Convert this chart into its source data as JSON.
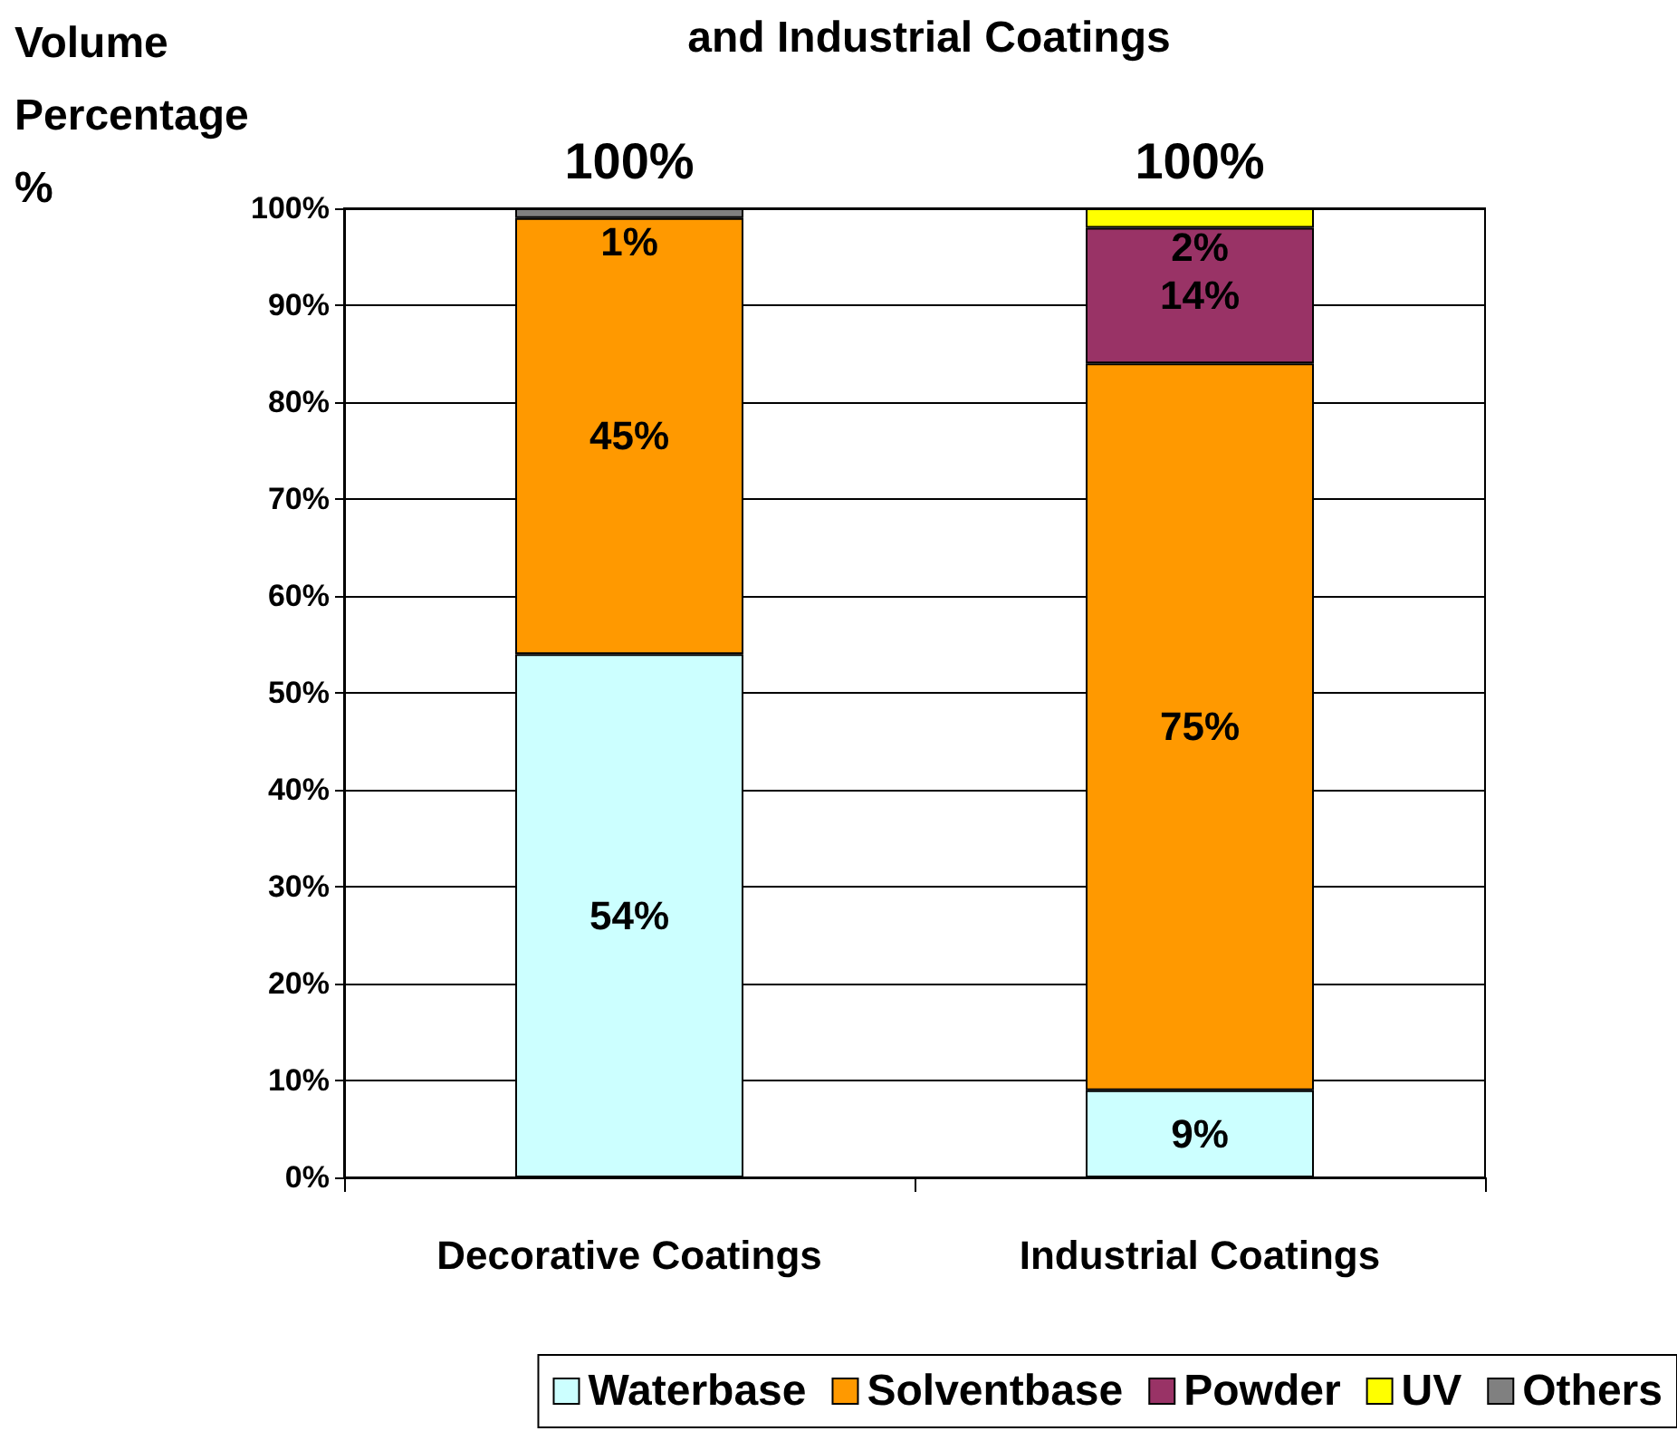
{
  "chart_data": {
    "type": "bar",
    "title": "and Industrial Coatings",
    "ylabel": "Volume Percentage %",
    "categories": [
      "Decorative Coatings",
      "Industrial Coatings"
    ],
    "stacked": true,
    "series": [
      {
        "name": "Waterbase",
        "color": "#ccffff",
        "values": [
          54,
          9
        ],
        "value_labels": [
          "54%",
          "9%"
        ]
      },
      {
        "name": "Solventbase",
        "color": "#ff9900",
        "values": [
          45,
          75
        ],
        "value_labels": [
          "45%",
          "75%"
        ]
      },
      {
        "name": "Powder",
        "color": "#993366",
        "values": [
          0,
          14
        ],
        "value_labels": [
          null,
          "14%"
        ]
      },
      {
        "name": "UV",
        "color": "#ffff00",
        "values": [
          0,
          2
        ],
        "value_labels": [
          null,
          "2%"
        ]
      },
      {
        "name": "Others",
        "color": "#808080",
        "values": [
          1,
          0
        ],
        "value_labels": [
          "1%",
          null
        ]
      }
    ],
    "totals": [
      "100%",
      "100%"
    ],
    "ylim": [
      0,
      100
    ],
    "yticks": [
      {
        "value": 0,
        "label": "0%"
      },
      {
        "value": 10,
        "label": "10%"
      },
      {
        "value": 20,
        "label": "20%"
      },
      {
        "value": 30,
        "label": "30%"
      },
      {
        "value": 40,
        "label": "40%"
      },
      {
        "value": 50,
        "label": "50%"
      },
      {
        "value": 60,
        "label": "60%"
      },
      {
        "value": 70,
        "label": "70%"
      },
      {
        "value": 80,
        "label": "80%"
      },
      {
        "value": 90,
        "label": "90%"
      },
      {
        "value": 100,
        "label": "100%"
      }
    ],
    "grid": "y",
    "legend": "bottom"
  }
}
